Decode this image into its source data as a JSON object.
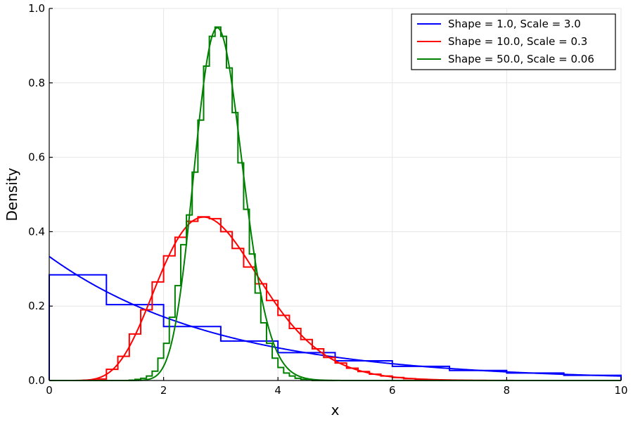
{
  "chart_data": {
    "type": "line",
    "title": "",
    "xlabel": "x",
    "ylabel": "Density",
    "xlim": [
      0,
      10
    ],
    "ylim": [
      0,
      1.0
    ],
    "x_ticks": [
      "0",
      "2",
      "4",
      "6",
      "8",
      "10"
    ],
    "y_ticks": [
      "0.0",
      "0.2",
      "0.4",
      "0.6",
      "0.8",
      "1.0"
    ],
    "grid": true,
    "legend_position": "top-right",
    "series": [
      {
        "name": "Shape = 1.0, Scale = 3.0",
        "color": "#0000ff",
        "distribution": "gamma",
        "shape": 1.0,
        "scale": 3.0,
        "histogram": {
          "bin_width": 1.0,
          "densities": [
            0.284,
            0.204,
            0.145,
            0.106,
            0.075,
            0.053,
            0.038,
            0.027,
            0.02,
            0.014
          ]
        }
      },
      {
        "name": "Shape = 10.0, Scale = 0.3",
        "color": "#ff0000",
        "distribution": "gamma",
        "shape": 10.0,
        "scale": 0.3,
        "histogram": {
          "bin_width": 0.2,
          "densities": [
            0,
            0,
            0,
            0.001,
            0.004,
            0.03,
            0.065,
            0.125,
            0.19,
            0.265,
            0.335,
            0.385,
            0.428,
            0.44,
            0.435,
            0.4,
            0.355,
            0.305,
            0.26,
            0.215,
            0.175,
            0.14,
            0.11,
            0.085,
            0.062,
            0.047,
            0.033,
            0.024,
            0.017,
            0.012,
            0.008,
            0.005,
            0.003,
            0.002,
            0.001,
            0.001,
            0,
            0,
            0,
            0
          ]
        }
      },
      {
        "name": "Shape = 50.0, Scale = 0.06",
        "color": "#008000",
        "distribution": "gamma",
        "shape": 50.0,
        "scale": 0.06,
        "histogram": {
          "bin_width": 0.1,
          "densities": [
            0,
            0,
            0,
            0,
            0,
            0,
            0,
            0,
            0,
            0,
            0,
            0,
            0,
            0,
            0.001,
            0.003,
            0.006,
            0.012,
            0.025,
            0.06,
            0.1,
            0.17,
            0.255,
            0.365,
            0.445,
            0.56,
            0.7,
            0.845,
            0.925,
            0.95,
            0.925,
            0.84,
            0.72,
            0.585,
            0.46,
            0.34,
            0.235,
            0.155,
            0.1,
            0.06,
            0.035,
            0.02,
            0.012,
            0.006,
            0.003,
            0.001,
            0,
            0,
            0,
            0
          ]
        }
      }
    ]
  }
}
